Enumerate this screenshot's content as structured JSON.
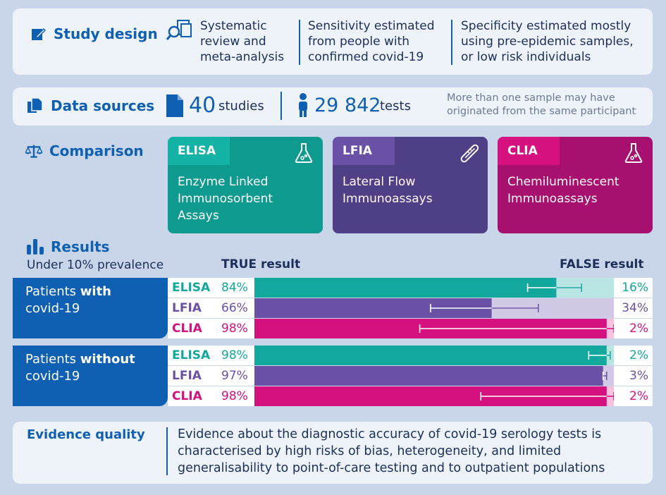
{
  "study_design": {
    "title": "Study design",
    "col1": "Systematic review and meta-analysis",
    "col2": "Sensitivity estimated from people with confirmed covid-19",
    "col3": "Specificity estimated mostly using pre-epidemic samples, or low risk individuals"
  },
  "data_sources": {
    "title": "Data sources",
    "studies_number": "40",
    "studies_label": "studies",
    "tests_number": "29 842",
    "tests_label": "tests",
    "note": "More than one sample may have originated from the same participant"
  },
  "comparison": {
    "title": "Comparison",
    "cards": [
      {
        "tag": "ELISA",
        "name": "Enzyme Linked Immunosorbent Assays",
        "icon": "flask-icon"
      },
      {
        "tag": "LFIA",
        "name": "Lateral Flow Immunoassays",
        "icon": "thermometer-icon"
      },
      {
        "tag": "CLIA",
        "name": "Chemiluminescent Immunoassays",
        "icon": "flask-icon"
      }
    ]
  },
  "results": {
    "title": "Results",
    "subtitle": "Under 10% prevalence",
    "true_header": "TRUE result",
    "false_header": "FALSE result",
    "group1_label_pre": "Patients ",
    "group1_label_bold": "with",
    "group1_label_post": "covid-19",
    "group2_label_pre": "Patients ",
    "group2_label_bold": "without",
    "group2_label_post": "covid-19"
  },
  "colors": {
    "ELISA": "#13a89e",
    "LFIA": "#6b51a6",
    "CLIA": "#d4117f",
    "ELISA_light": "#b9e6e2",
    "LFIA_light": "#d2c9e6",
    "CLIA_light": "#f6c2df",
    "ELISA_card": "#0e9a8f",
    "LFIA_card": "#4f3f86",
    "CLIA_card": "#a8106f",
    "accent": "#0f5fb3"
  },
  "chart_data": {
    "type": "bar",
    "categories": [
      "ELISA",
      "LFIA",
      "CLIA"
    ],
    "series": [
      {
        "name": "Patients with covid-19",
        "rows": [
          {
            "test": "ELISA",
            "true_label": "84%",
            "false_label": "16%",
            "value": 84,
            "ci": [
              76,
              91
            ]
          },
          {
            "test": "LFIA",
            "true_label": "66%",
            "false_label": "34%",
            "value": 66,
            "ci": [
              49,
              79
            ]
          },
          {
            "test": "CLIA",
            "true_label": "98%",
            "false_label": "2%",
            "value": 98,
            "ci": [
              46,
              100
            ]
          }
        ]
      },
      {
        "name": "Patients without covid-19",
        "rows": [
          {
            "test": "ELISA",
            "true_label": "98%",
            "false_label": "2%",
            "value": 98,
            "ci": [
              93,
              99
            ]
          },
          {
            "test": "LFIA",
            "true_label": "97%",
            "false_label": "3%",
            "value": 97,
            "ci": [
              97,
              98
            ]
          },
          {
            "test": "CLIA",
            "true_label": "98%",
            "false_label": "2%",
            "value": 98,
            "ci": [
              63,
              100
            ]
          }
        ]
      }
    ],
    "xlim": [
      0,
      100
    ]
  },
  "evidence": {
    "title": "Evidence quality",
    "text": "Evidence about the diagnostic accuracy of covid-19 serology tests is characterised by high risks of bias, heterogeneity, and limited generalisability to point-of-care testing and to outpatient populations"
  }
}
